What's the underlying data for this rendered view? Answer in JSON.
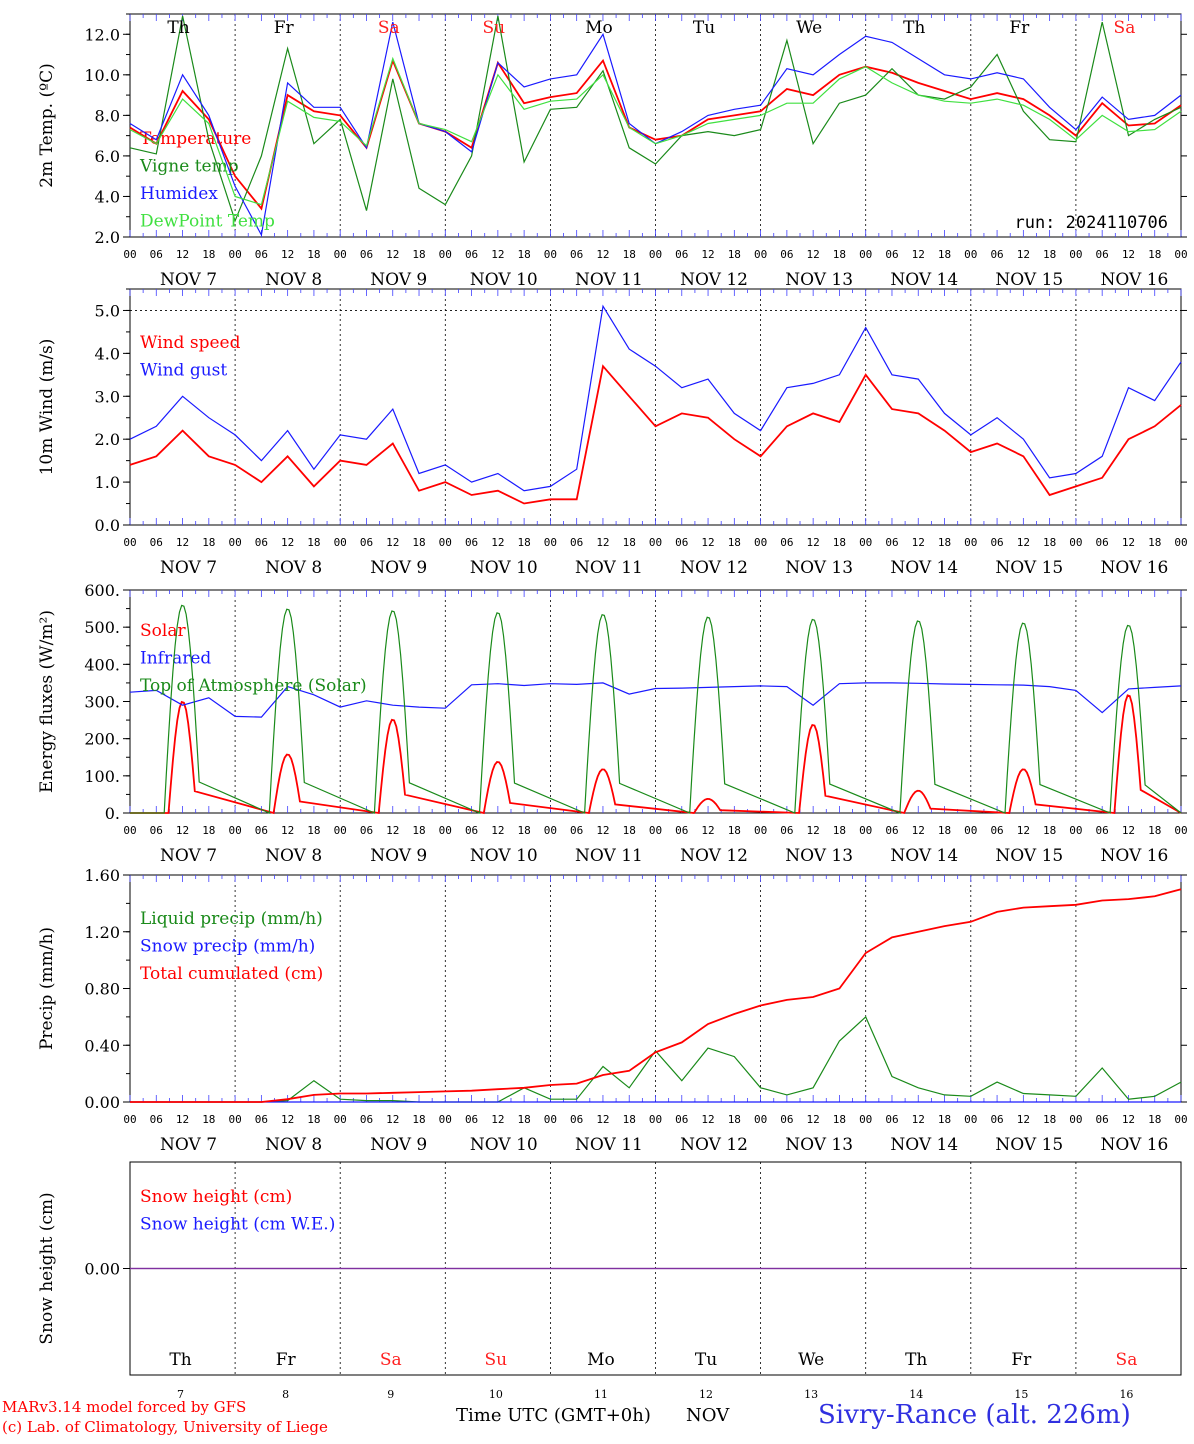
{
  "days": [
    {
      "abbr": "Th",
      "date": "NOV 7",
      "num": "7",
      "weekend": false
    },
    {
      "abbr": "Fr",
      "date": "NOV 8",
      "num": "8",
      "weekend": false
    },
    {
      "abbr": "Sa",
      "date": "NOV 9",
      "num": "9",
      "weekend": true
    },
    {
      "abbr": "Su",
      "date": "NOV 10",
      "num": "10",
      "weekend": true
    },
    {
      "abbr": "Mo",
      "date": "NOV 11",
      "num": "11",
      "weekend": false
    },
    {
      "abbr": "Tu",
      "date": "NOV 12",
      "num": "12",
      "weekend": false
    },
    {
      "abbr": "We",
      "date": "NOV 13",
      "num": "13",
      "weekend": false
    },
    {
      "abbr": "Th",
      "date": "NOV 14",
      "num": "14",
      "weekend": false
    },
    {
      "abbr": "Fr",
      "date": "NOV 15",
      "num": "15",
      "weekend": false
    },
    {
      "abbr": "Sa",
      "date": "NOV 16",
      "num": "16",
      "weekend": true
    }
  ],
  "hour_ticks": [
    "00",
    "06",
    "12",
    "18"
  ],
  "colors": {
    "weekday": "#000000",
    "weekend": "#ff2020",
    "red": "#ff0000",
    "green": "#1a8a1a",
    "blue": "#1a1aff",
    "lightgreen": "#40e040",
    "purple": "#8030a0"
  },
  "footer": {
    "model": "MARv3.14 model forced by GFS",
    "lab": "(c) Lab. of Climatology, University of Liege",
    "time_label": "Time UTC (GMT+0h)",
    "month": "NOV",
    "station": "Sivry-Rance (alt. 226m)"
  },
  "chart_data": [
    {
      "type": "line",
      "ylabel": "2m Temp. (ºC)",
      "ylim": [
        2.0,
        13.0
      ],
      "yticks": [
        "2.0",
        "4.0",
        "6.0",
        "8.0",
        "10.0",
        "12.0"
      ],
      "ytick_values": [
        2,
        4,
        6,
        8,
        10,
        12
      ],
      "run_label": "run: 2024110706",
      "x_hours": [
        0,
        6,
        12,
        18,
        24,
        30,
        36,
        42,
        48,
        54,
        60,
        66,
        72,
        78,
        84,
        90,
        96,
        102,
        108,
        114,
        120,
        126,
        132,
        138,
        144,
        150,
        156,
        162,
        168,
        174,
        180,
        186,
        192,
        198,
        204,
        210,
        216,
        222,
        228,
        234,
        240
      ],
      "series": [
        {
          "name": "Temperature",
          "color": "red",
          "values": [
            7.4,
            6.6,
            9.2,
            7.8,
            5.0,
            3.4,
            9.0,
            8.2,
            8.0,
            6.4,
            10.7,
            7.6,
            7.2,
            6.4,
            10.6,
            8.6,
            8.9,
            9.1,
            10.7,
            7.4,
            6.8,
            7.0,
            7.8,
            8.0,
            8.2,
            9.3,
            9.0,
            10.0,
            10.4,
            10.1,
            9.6,
            9.2,
            8.8,
            9.1,
            8.8,
            8.0,
            7.0,
            8.6,
            7.5,
            7.6,
            8.5
          ]
        },
        {
          "name": "Vigne temp",
          "color": "green",
          "values": [
            6.4,
            6.1,
            12.9,
            6.8,
            2.8,
            6.0,
            11.3,
            6.6,
            7.8,
            3.3,
            9.8,
            4.4,
            3.6,
            6.0,
            12.9,
            5.7,
            8.3,
            8.4,
            10.2,
            6.4,
            5.6,
            7.0,
            7.2,
            7.0,
            7.3,
            11.7,
            6.6,
            8.6,
            9.0,
            10.3,
            9.0,
            8.8,
            9.4,
            11.0,
            8.2,
            6.8,
            6.7,
            12.6,
            7.0,
            7.8,
            8.4
          ]
        },
        {
          "name": "Humidex",
          "color": "blue",
          "values": [
            7.6,
            6.8,
            10.0,
            8.0,
            4.5,
            2.1,
            9.6,
            8.4,
            8.4,
            6.4,
            12.6,
            7.6,
            7.2,
            6.2,
            10.6,
            9.4,
            9.8,
            10.0,
            12.0,
            7.6,
            6.6,
            7.2,
            8.0,
            8.3,
            8.5,
            10.3,
            10.0,
            11.0,
            11.9,
            11.6,
            10.8,
            10.0,
            9.8,
            10.1,
            9.8,
            8.4,
            7.3,
            8.9,
            7.8,
            8.0,
            9.0
          ]
        },
        {
          "name": "DewPoint Temp",
          "color": "lightgreen",
          "values": [
            7.3,
            6.6,
            8.8,
            7.6,
            4.0,
            3.6,
            8.7,
            7.9,
            7.7,
            6.5,
            10.8,
            7.6,
            7.3,
            6.7,
            10.0,
            8.3,
            8.7,
            8.8,
            10.0,
            7.4,
            6.6,
            7.0,
            7.6,
            7.8,
            8.0,
            8.6,
            8.6,
            9.8,
            10.4,
            9.6,
            9.0,
            8.7,
            8.6,
            8.8,
            8.5,
            7.8,
            6.8,
            8.0,
            7.2,
            7.3,
            8.2
          ]
        }
      ]
    },
    {
      "type": "line",
      "ylabel": "10m Wind (m/s)",
      "ylim": [
        0.0,
        5.5
      ],
      "yticks": [
        "0.0",
        "1.0",
        "2.0",
        "3.0",
        "4.0",
        "5.0"
      ],
      "ytick_values": [
        0,
        1,
        2,
        3,
        4,
        5
      ],
      "x_hours": [
        0,
        6,
        12,
        18,
        24,
        30,
        36,
        42,
        48,
        54,
        60,
        66,
        72,
        78,
        84,
        90,
        96,
        102,
        108,
        114,
        120,
        126,
        132,
        138,
        144,
        150,
        156,
        162,
        168,
        174,
        180,
        186,
        192,
        198,
        204,
        210,
        216,
        222,
        228,
        234,
        240
      ],
      "series": [
        {
          "name": "Wind speed",
          "color": "red",
          "values": [
            1.4,
            1.6,
            2.2,
            1.6,
            1.4,
            1.0,
            1.6,
            0.9,
            1.5,
            1.4,
            1.9,
            0.8,
            1.0,
            0.7,
            0.8,
            0.5,
            0.6,
            0.6,
            3.7,
            3.0,
            2.3,
            2.6,
            2.5,
            2.0,
            1.6,
            2.3,
            2.6,
            2.4,
            3.5,
            2.7,
            2.6,
            2.2,
            1.7,
            1.9,
            1.6,
            0.7,
            0.9,
            1.1,
            2.0,
            2.3,
            2.8
          ]
        },
        {
          "name": "Wind gust",
          "color": "blue",
          "values": [
            2.0,
            2.3,
            3.0,
            2.5,
            2.1,
            1.5,
            2.2,
            1.3,
            2.1,
            2.0,
            2.7,
            1.2,
            1.4,
            1.0,
            1.2,
            0.8,
            0.9,
            1.3,
            5.1,
            4.1,
            3.7,
            3.2,
            3.4,
            2.6,
            2.2,
            3.2,
            3.3,
            3.5,
            4.6,
            3.5,
            3.4,
            2.6,
            2.1,
            2.5,
            2.0,
            1.1,
            1.2,
            1.6,
            3.2,
            2.9,
            3.8
          ]
        }
      ]
    },
    {
      "type": "line",
      "ylabel": "Energy fluxes (W/m²)",
      "ylim": [
        0,
        600
      ],
      "yticks": [
        "0.",
        "100.",
        "200.",
        "300.",
        "400.",
        "500.",
        "600."
      ],
      "ytick_values": [
        0,
        100,
        200,
        300,
        400,
        500,
        600
      ],
      "series": [
        {
          "name": "Solar",
          "color": "red",
          "day_peaks": [
            300,
            158,
            252,
            138,
            118,
            38,
            238,
            60,
            118,
            318
          ]
        },
        {
          "name": "Infrared",
          "color": "blue",
          "x_hours": [
            0,
            6,
            12,
            18,
            24,
            30,
            36,
            42,
            48,
            54,
            60,
            66,
            72,
            78,
            84,
            90,
            96,
            102,
            108,
            114,
            120,
            126,
            132,
            138,
            144,
            150,
            156,
            162,
            168,
            174,
            180,
            186,
            192,
            198,
            204,
            210,
            216,
            222,
            228,
            234,
            240
          ],
          "values": [
            325,
            330,
            290,
            310,
            260,
            258,
            340,
            318,
            285,
            302,
            290,
            285,
            282,
            345,
            348,
            343,
            348,
            346,
            350,
            320,
            335,
            336,
            338,
            340,
            342,
            340,
            290,
            348,
            350,
            350,
            349,
            347,
            346,
            345,
            344,
            340,
            330,
            270,
            334,
            338,
            342
          ]
        },
        {
          "name": "Top of Atmosphere (Solar)",
          "color": "green",
          "day_peaks": [
            560,
            550,
            545,
            540,
            535,
            528,
            522,
            518,
            512,
            506
          ]
        }
      ]
    },
    {
      "type": "line",
      "ylabel": "Precip (mm/h)",
      "ylim": [
        0,
        1.6
      ],
      "yticks": [
        "0.00",
        "0.40",
        "0.80",
        "1.20",
        "1.60"
      ],
      "ytick_values": [
        0,
        0.4,
        0.8,
        1.2,
        1.6
      ],
      "x_hours": [
        0,
        6,
        12,
        18,
        24,
        30,
        36,
        42,
        48,
        54,
        60,
        66,
        72,
        78,
        84,
        90,
        96,
        102,
        108,
        114,
        120,
        126,
        132,
        138,
        144,
        150,
        156,
        162,
        168,
        174,
        180,
        186,
        192,
        198,
        204,
        210,
        216,
        222,
        228,
        234,
        240
      ],
      "series": [
        {
          "name": "Liquid precip (mm/h)",
          "color": "green",
          "values": [
            0,
            0,
            0,
            0,
            0,
            0,
            0.01,
            0.15,
            0.02,
            0.01,
            0.01,
            0,
            0,
            0,
            0,
            0.1,
            0.02,
            0.02,
            0.25,
            0.1,
            0.36,
            0.15,
            0.38,
            0.32,
            0.1,
            0.05,
            0.1,
            0.43,
            0.6,
            0.18,
            0.1,
            0.05,
            0.04,
            0.14,
            0.06,
            0.05,
            0.04,
            0.24,
            0.02,
            0.04,
            0.14
          ]
        },
        {
          "name": "Snow precip (mm/h)",
          "color": "blue",
          "values": [
            0,
            0,
            0,
            0,
            0,
            0,
            0,
            0,
            0,
            0,
            0,
            0,
            0,
            0,
            0,
            0,
            0,
            0,
            0,
            0,
            0,
            0,
            0,
            0,
            0,
            0,
            0,
            0,
            0,
            0,
            0,
            0,
            0,
            0,
            0,
            0,
            0,
            0,
            0,
            0,
            0
          ]
        },
        {
          "name": "Total cumulated (cm)",
          "color": "red",
          "values": [
            0,
            0,
            0,
            0,
            0,
            0,
            0.02,
            0.05,
            0.06,
            0.06,
            0.065,
            0.07,
            0.075,
            0.08,
            0.09,
            0.1,
            0.12,
            0.13,
            0.19,
            0.22,
            0.35,
            0.42,
            0.55,
            0.62,
            0.68,
            0.72,
            0.74,
            0.8,
            1.05,
            1.16,
            1.2,
            1.24,
            1.27,
            1.34,
            1.37,
            1.38,
            1.39,
            1.42,
            1.43,
            1.45,
            1.5
          ]
        }
      ]
    },
    {
      "type": "line",
      "ylabel": "Snow height (cm)",
      "yticks": [
        "0.00"
      ],
      "series": [
        {
          "name": "Snow height (cm)",
          "color": "red",
          "values": [
            0,
            0
          ]
        },
        {
          "name": "Snow height (cm W.E.)",
          "color": "blue",
          "values": [
            0,
            0
          ]
        }
      ]
    }
  ]
}
